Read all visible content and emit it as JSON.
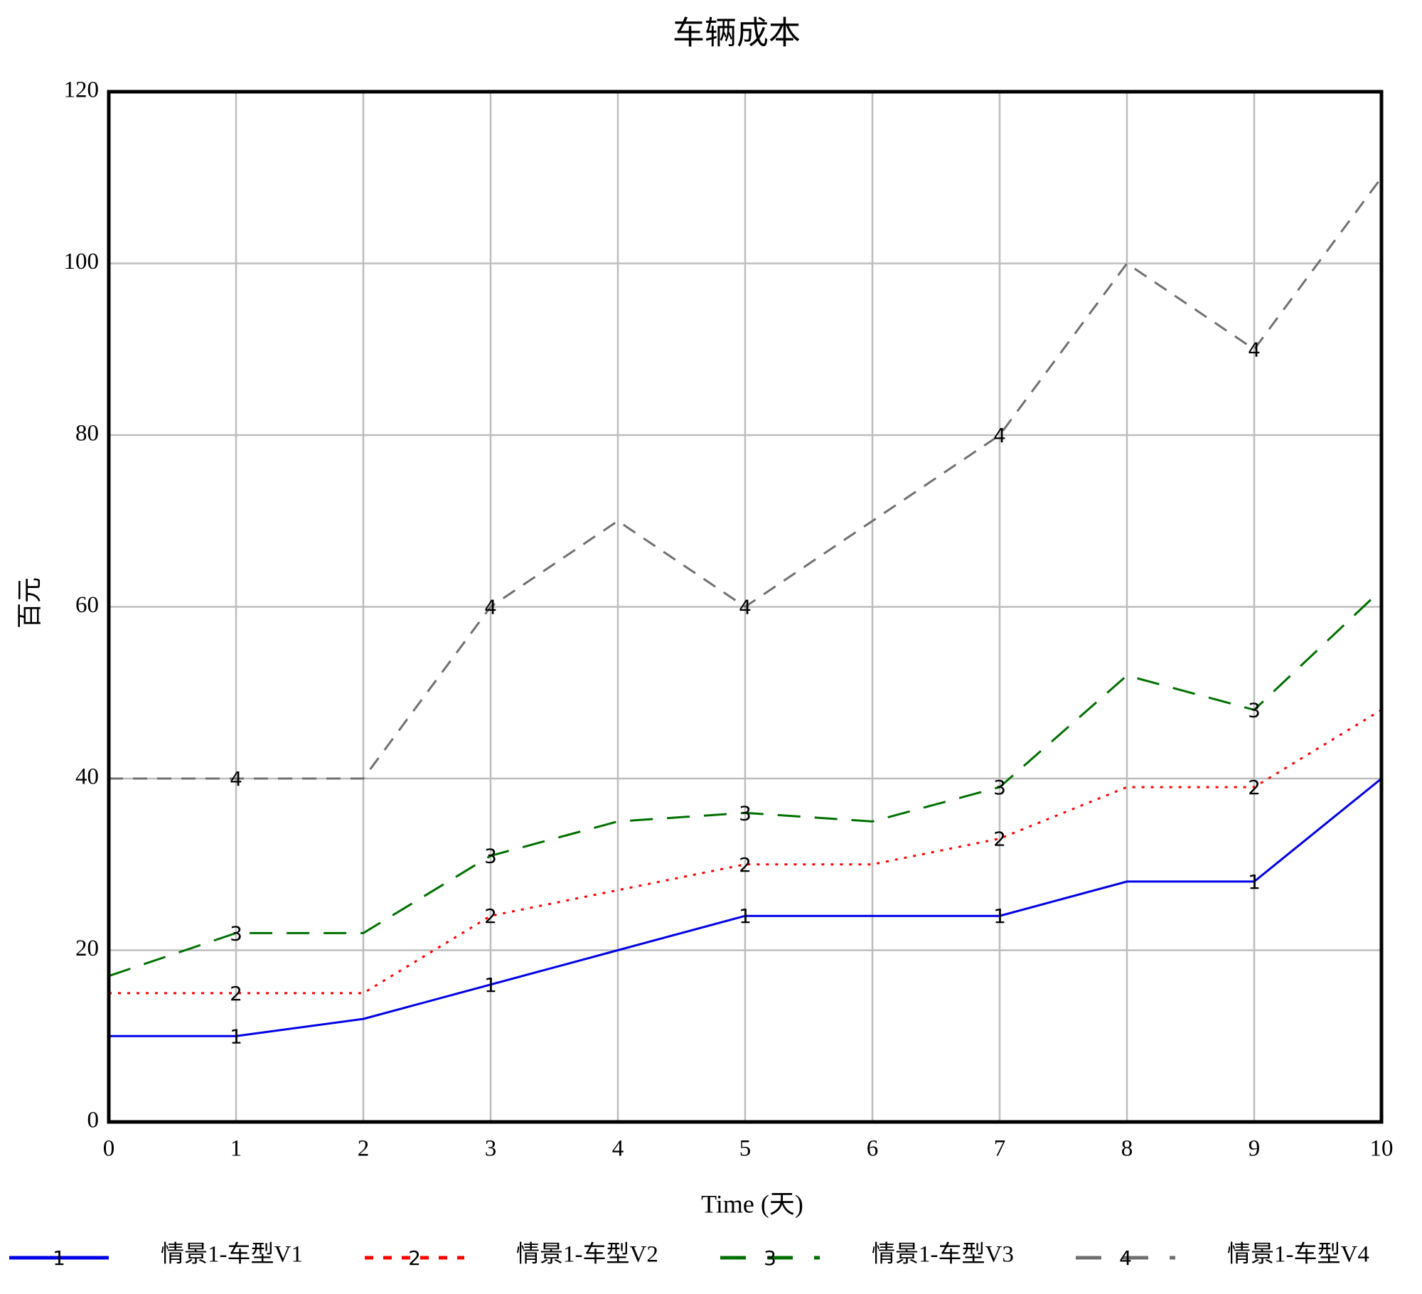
{
  "chart_data": {
    "type": "line",
    "title": "车辆成本",
    "xlabel": "Time (天)",
    "ylabel": "百元",
    "x": [
      0,
      1,
      2,
      3,
      4,
      5,
      6,
      7,
      8,
      9,
      10
    ],
    "xlim": [
      0,
      10
    ],
    "xticks": [
      0,
      1,
      2,
      3,
      4,
      5,
      6,
      7,
      8,
      9,
      10
    ],
    "ylim": [
      0,
      120
    ],
    "yticks": [
      0,
      20,
      40,
      60,
      80,
      100,
      120
    ],
    "grid": true,
    "legend": "bottom",
    "series": [
      {
        "name": "情景1-车型V1",
        "marker": "1",
        "color": "#0000e6",
        "dash": "solid",
        "values": [
          10,
          10,
          12,
          16,
          20,
          24,
          24,
          24,
          28,
          28,
          40
        ]
      },
      {
        "name": "情景1-车型V2",
        "marker": "2",
        "color": "#ff0000",
        "dash": "dotted",
        "values": [
          15,
          15,
          15,
          24,
          27,
          30,
          30,
          33,
          39,
          39,
          48
        ]
      },
      {
        "name": "情景1-车型V3",
        "marker": "3",
        "color": "#007000",
        "dash": "long-dash",
        "values": [
          17,
          22,
          22,
          31,
          35,
          36,
          35,
          39,
          52,
          48,
          62
        ]
      },
      {
        "name": "情景1-车型V4",
        "marker": "4",
        "color": "#707070",
        "dash": "dashed",
        "values": [
          40,
          40,
          40,
          60,
          70,
          60,
          70,
          80,
          100,
          90,
          110
        ]
      }
    ]
  }
}
